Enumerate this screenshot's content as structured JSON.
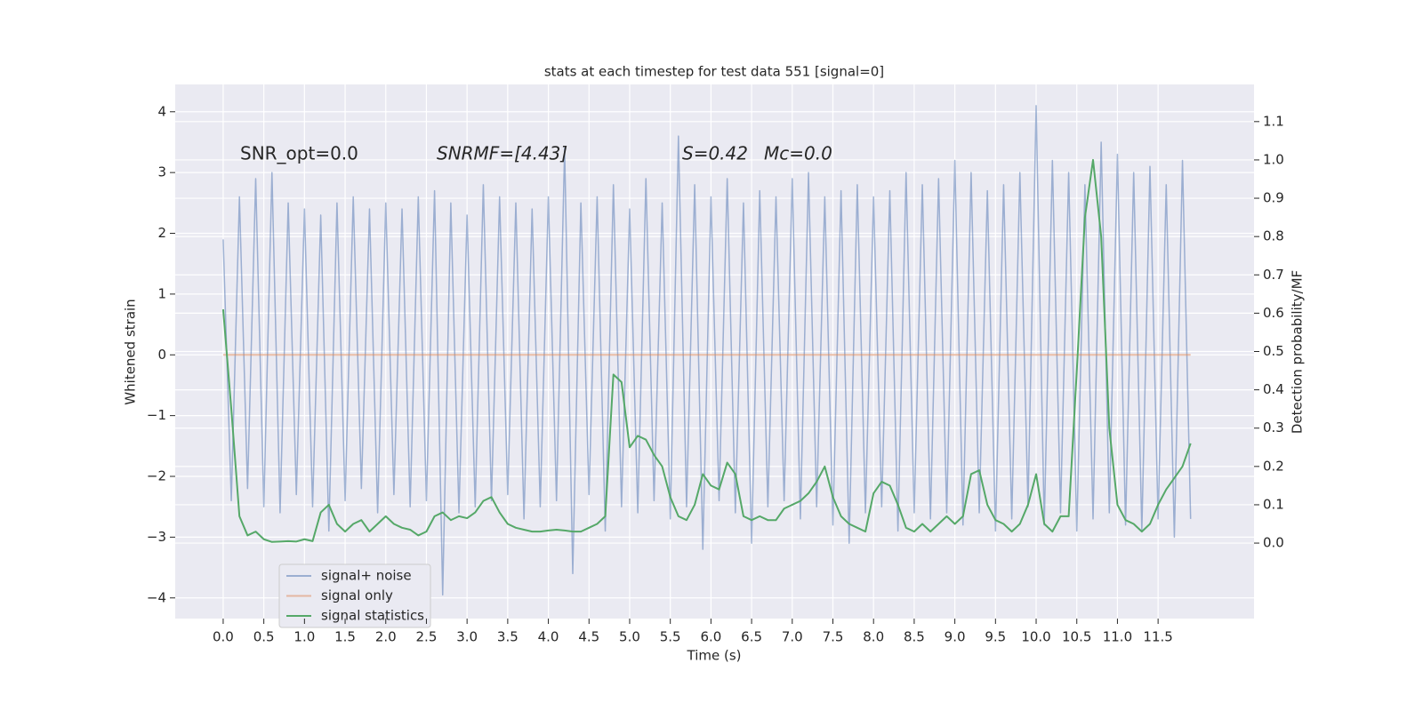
{
  "chart_data": {
    "type": "line",
    "title": "stats at each timestep for test data 551 [signal=0]",
    "xlabel": "Time (s)",
    "ylabel": "Whitened strain",
    "y2label": "Detection probability/MF",
    "annotations": [
      "SNR_opt=0.0",
      "SNRMF=[4.43]",
      "S=0.42",
      "Mc=0.0"
    ],
    "legend": "lower left",
    "grid": true,
    "x": [
      0,
      0.1,
      0.2,
      0.3,
      0.4,
      0.5,
      0.6,
      0.7,
      0.8,
      0.9,
      1,
      1.1,
      1.2,
      1.3,
      1.4,
      1.5,
      1.6,
      1.7,
      1.8,
      1.9,
      2,
      2.1,
      2.2,
      2.3,
      2.4,
      2.5,
      2.6,
      2.7,
      2.8,
      2.9,
      3,
      3.1,
      3.2,
      3.3,
      3.4,
      3.5,
      3.6,
      3.7,
      3.8,
      3.9,
      4,
      4.1,
      4.2,
      4.3,
      4.4,
      4.5,
      4.6,
      4.7,
      4.8,
      4.9,
      5,
      5.1,
      5.2,
      5.3,
      5.4,
      5.5,
      5.6,
      5.7,
      5.8,
      5.9,
      6,
      6.1,
      6.2,
      6.3,
      6.4,
      6.5,
      6.6,
      6.7,
      6.8,
      6.9,
      7,
      7.1,
      7.2,
      7.3,
      7.4,
      7.5,
      7.6,
      7.7,
      7.8,
      7.9,
      8,
      8.1,
      8.2,
      8.3,
      8.4,
      8.5,
      8.6,
      8.7,
      8.8,
      8.9,
      9,
      9.1,
      9.2,
      9.3,
      9.4,
      9.5,
      9.6,
      9.7,
      9.8,
      9.9,
      10,
      10.1,
      10.2,
      10.3,
      10.4,
      10.5,
      10.6,
      10.7,
      10.8,
      10.9,
      11,
      11.1,
      11.2,
      11.3,
      11.4,
      11.5,
      11.6,
      11.7,
      11.8,
      11.9
    ],
    "series": [
      {
        "name": "signal+ noise",
        "color": "#4c72b0",
        "values": [
          1.9,
          -2.4,
          2.6,
          -2.2,
          2.9,
          -2.5,
          3.0,
          -2.6,
          2.5,
          -2.3,
          2.4,
          -2.5,
          2.3,
          -2.9,
          2.5,
          -2.4,
          2.6,
          -2.2,
          2.4,
          -2.6,
          2.5,
          -2.3,
          2.4,
          -2.5,
          2.6,
          -2.4,
          2.7,
          -3.95,
          2.5,
          -2.6,
          2.3,
          -2.5,
          2.8,
          -2.4,
          2.6,
          -2.3,
          2.5,
          -2.7,
          2.4,
          -2.5,
          2.6,
          -2.4,
          3.4,
          -3.6,
          2.5,
          -2.3,
          2.6,
          -2.9,
          2.8,
          -2.5,
          2.4,
          -2.6,
          2.9,
          -2.4,
          2.5,
          -2.7,
          3.6,
          -2.5,
          2.8,
          -3.2,
          2.6,
          -2.4,
          2.9,
          -2.6,
          2.5,
          -3.1,
          2.7,
          -2.5,
          2.6,
          -2.4,
          2.9,
          -2.7,
          3.0,
          -2.5,
          2.6,
          -2.8,
          2.7,
          -3.1,
          2.8,
          -2.6,
          2.6,
          -2.5,
          2.7,
          -2.9,
          3.0,
          -2.6,
          2.8,
          -2.7,
          2.9,
          -2.6,
          3.2,
          -2.8,
          3.0,
          -2.6,
          2.7,
          -2.9,
          2.8,
          -2.7,
          3.0,
          -2.5,
          4.1,
          -2.8,
          3.2,
          -2.6,
          3.0,
          -2.9,
          2.8,
          -2.7,
          3.5,
          -2.6,
          3.3,
          -2.8,
          3.0,
          -2.9,
          3.1,
          -2.7,
          2.8,
          -3.0,
          3.2,
          -2.7
        ]
      },
      {
        "name": "signal only",
        "color": "#dd8452",
        "values": [
          0,
          0,
          0,
          0,
          0,
          0,
          0,
          0,
          0,
          0,
          0,
          0,
          0,
          0,
          0,
          0,
          0,
          0,
          0,
          0,
          0,
          0,
          0,
          0,
          0,
          0,
          0,
          0,
          0,
          0,
          0,
          0,
          0,
          0,
          0,
          0,
          0,
          0,
          0,
          0,
          0,
          0,
          0,
          0,
          0,
          0,
          0,
          0,
          0,
          0,
          0,
          0,
          0,
          0,
          0,
          0,
          0,
          0,
          0,
          0,
          0,
          0,
          0,
          0,
          0,
          0,
          0,
          0,
          0,
          0,
          0,
          0,
          0,
          0,
          0,
          0,
          0,
          0,
          0,
          0,
          0,
          0,
          0,
          0,
          0,
          0,
          0,
          0,
          0,
          0,
          0,
          0,
          0,
          0,
          0,
          0,
          0,
          0,
          0,
          0,
          0,
          0,
          0,
          0,
          0,
          0,
          0,
          0,
          0,
          0,
          0,
          0,
          0,
          0,
          0,
          0,
          0,
          0,
          0,
          0
        ]
      },
      {
        "name": "signal statistics",
        "color": "#55a868",
        "axis": "y2",
        "values": [
          0.61,
          0.35,
          0.07,
          0.02,
          0.03,
          0.01,
          0.003,
          0.004,
          0.005,
          0.004,
          0.01,
          0.005,
          0.08,
          0.1,
          0.05,
          0.03,
          0.05,
          0.06,
          0.03,
          0.05,
          0.07,
          0.05,
          0.04,
          0.035,
          0.02,
          0.03,
          0.07,
          0.08,
          0.06,
          0.07,
          0.065,
          0.08,
          0.11,
          0.12,
          0.08,
          0.05,
          0.04,
          0.035,
          0.03,
          0.03,
          0.033,
          0.035,
          0.033,
          0.03,
          0.03,
          0.04,
          0.05,
          0.07,
          0.44,
          0.42,
          0.25,
          0.28,
          0.27,
          0.23,
          0.2,
          0.12,
          0.07,
          0.06,
          0.1,
          0.18,
          0.15,
          0.14,
          0.21,
          0.18,
          0.07,
          0.06,
          0.07,
          0.06,
          0.06,
          0.09,
          0.1,
          0.11,
          0.13,
          0.16,
          0.2,
          0.12,
          0.07,
          0.05,
          0.04,
          0.03,
          0.13,
          0.16,
          0.15,
          0.1,
          0.04,
          0.03,
          0.05,
          0.03,
          0.05,
          0.07,
          0.05,
          0.07,
          0.18,
          0.19,
          0.1,
          0.06,
          0.05,
          0.03,
          0.05,
          0.1,
          0.18,
          0.05,
          0.03,
          0.07,
          0.07,
          0.45,
          0.85,
          1.0,
          0.8,
          0.3,
          0.1,
          0.06,
          0.05,
          0.03,
          0.05,
          0.1,
          0.14,
          0.17,
          0.2,
          0.26
        ]
      }
    ],
    "xlim": [
      -0.59,
      12.68
    ],
    "xticks": [
      {
        "value": 0,
        "label": "0.0"
      },
      0.5,
      {
        "value": 1,
        "label": "1.0"
      },
      1.5,
      {
        "value": 2,
        "label": "2.0"
      },
      2.5,
      {
        "value": 3,
        "label": "3.0"
      },
      3.5,
      {
        "value": 4,
        "label": "4.0"
      },
      4.5,
      {
        "value": 5,
        "label": "5.0"
      },
      5.5,
      {
        "value": 6,
        "label": "6.0"
      },
      6.5,
      {
        "value": 7,
        "label": "7.0"
      },
      7.5,
      {
        "value": 8,
        "label": "8.0"
      },
      8.5,
      {
        "value": 9,
        "label": "9.0"
      },
      9.5,
      {
        "value": 10,
        "label": "10.0"
      },
      10.5,
      {
        "value": 11,
        "label": "11.0"
      },
      11.5
    ],
    "ylim": [
      -4.34,
      4.45
    ],
    "yticks": [
      {
        "value": -4,
        "label": "−4"
      },
      {
        "value": -3,
        "label": "−3"
      },
      {
        "value": -2,
        "label": "−2"
      },
      {
        "value": -1,
        "label": "−1"
      },
      0,
      1,
      2,
      3,
      4
    ],
    "y2lim": [
      -0.197,
      1.197
    ],
    "y2ticks": [
      {
        "value": 0,
        "label": "0.0"
      },
      0.1,
      0.2,
      0.3,
      0.4,
      0.5,
      0.6,
      0.7,
      0.8,
      0.9,
      {
        "value": 1,
        "label": "1.0"
      },
      1.1
    ]
  }
}
